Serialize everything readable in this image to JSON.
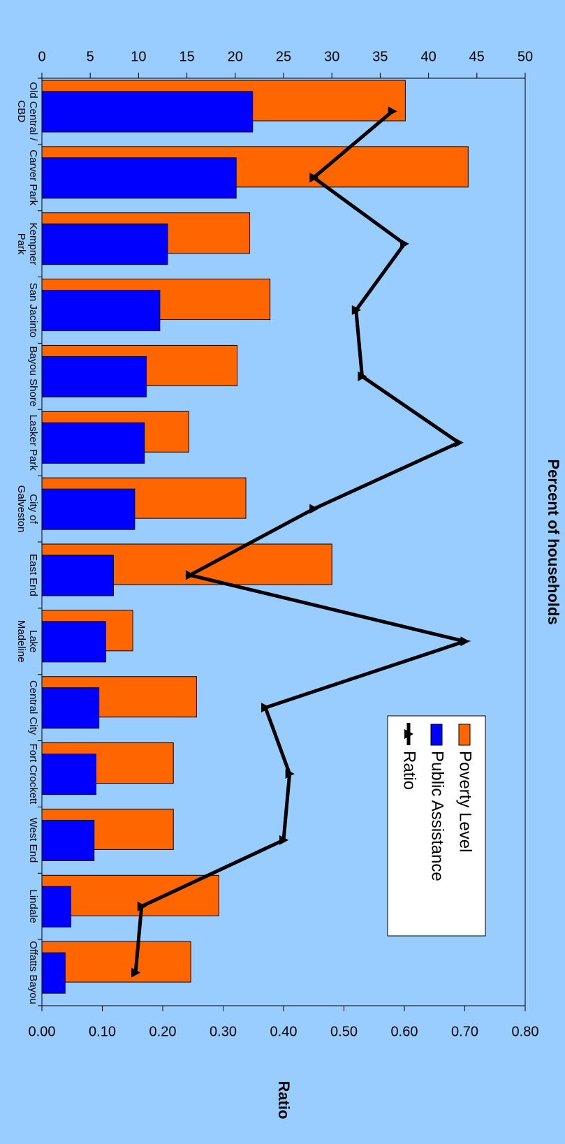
{
  "chart_data": {
    "type": "bar",
    "categories": [
      "Old Central / CBD",
      "Carver Park",
      "Kempner Park",
      "San Jacinto",
      "Bayou Shore",
      "Lasker Park",
      "City of Galveston",
      "East End",
      "Lake Madeline",
      "Central City",
      "Fort Crockett",
      "West End",
      "Lindale",
      "Offatts Bayou"
    ],
    "series": [
      {
        "name": "Poverty Level",
        "color": "#ff6600",
        "values": [
          37.6,
          44.1,
          21.5,
          23.6,
          20.2,
          15.2,
          21.1,
          30.0,
          9.4,
          16.0,
          13.6,
          13.6,
          18.3,
          15.4
        ]
      },
      {
        "name": "Public Assistance",
        "color": "#0000ff",
        "values": [
          21.8,
          20.1,
          13.0,
          12.2,
          10.8,
          10.6,
          9.6,
          7.4,
          6.6,
          5.9,
          5.6,
          5.4,
          3.0,
          2.4
        ]
      },
      {
        "name": "Ratio",
        "type": "line",
        "axis": "y2",
        "color": "#000000",
        "values": [
          0.58,
          0.45,
          0.6,
          0.52,
          0.53,
          0.69,
          0.45,
          0.245,
          0.7,
          0.37,
          0.41,
          0.4,
          0.165,
          0.155
        ]
      }
    ],
    "y_label": "Percent of households",
    "y2_label": "Ratio",
    "ylim": [
      0,
      50
    ],
    "yticks": [
      0,
      5,
      10,
      15,
      20,
      25,
      30,
      35,
      40,
      45,
      50
    ],
    "y2lim": [
      0,
      0.8
    ],
    "y2ticks": [
      {
        "value": 0,
        "label": "0.00"
      },
      {
        "value": 0.1,
        "label": "0.10"
      },
      {
        "value": 0.2,
        "label": "0.20"
      },
      {
        "value": 0.3,
        "label": "0.30"
      },
      {
        "value": 0.4,
        "label": "0.40"
      },
      {
        "value": 0.5,
        "label": "0.50"
      },
      {
        "value": 0.6,
        "label": "0.60"
      },
      {
        "value": 0.7,
        "label": "0.70"
      },
      {
        "value": 0.8,
        "label": "0.80"
      }
    ],
    "legend": "right"
  }
}
